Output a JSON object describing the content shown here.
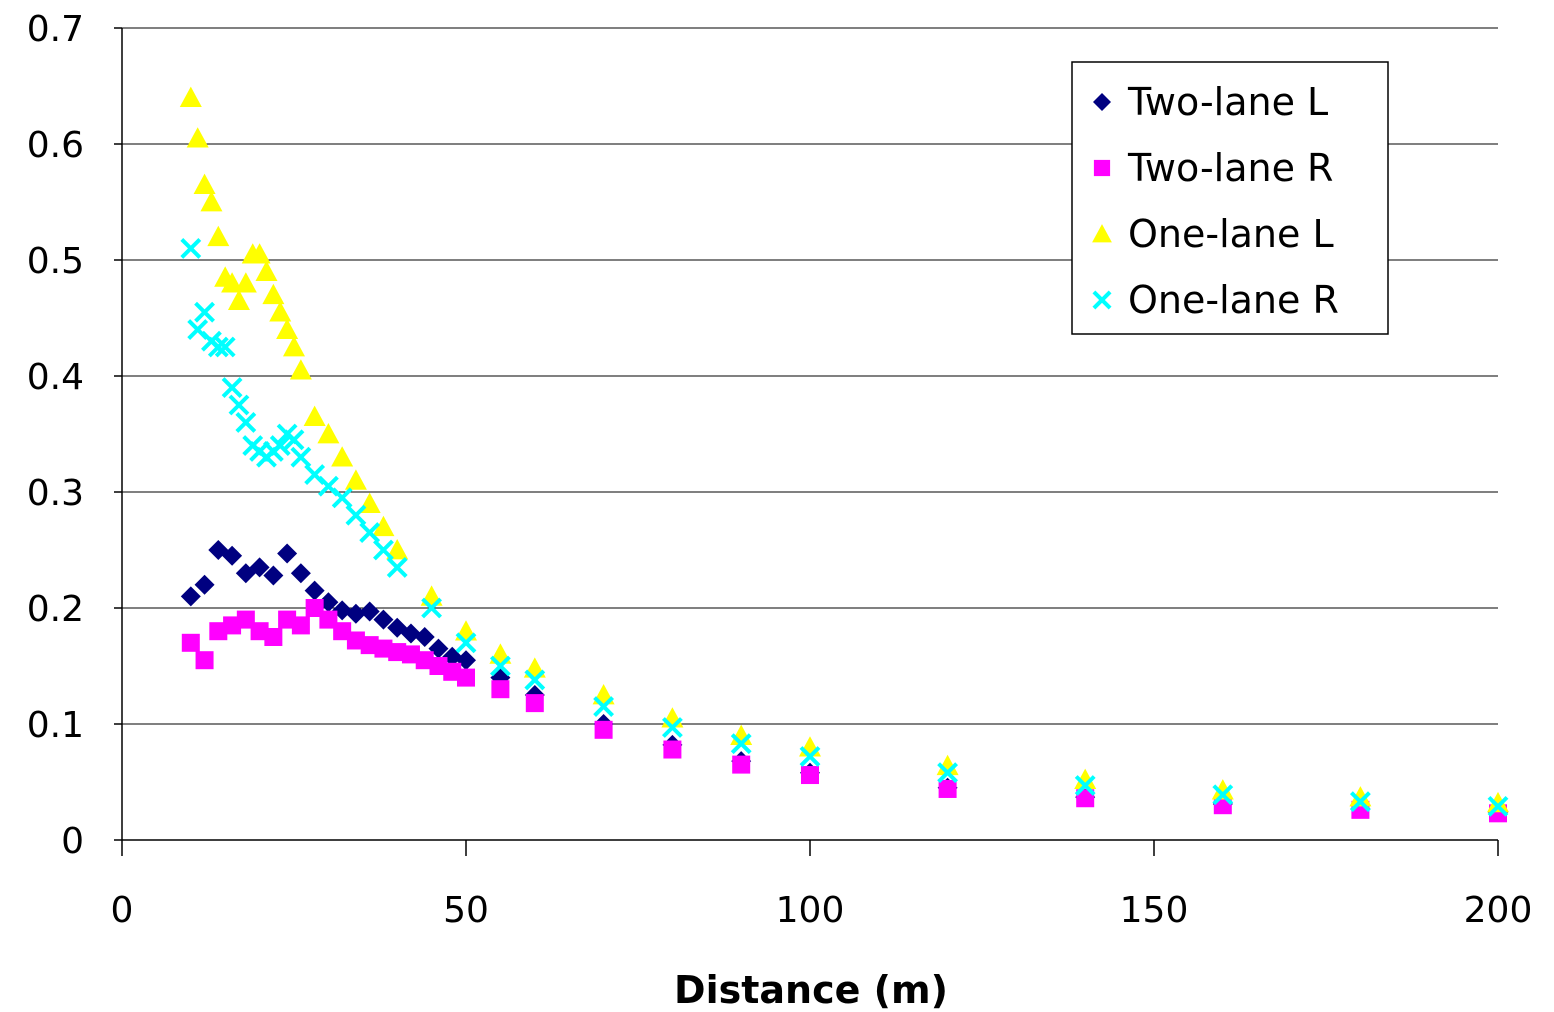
{
  "chart_data": {
    "type": "scatter",
    "title": "",
    "xlabel": "Distance (m)",
    "ylabel": "",
    "xlim": [
      0,
      200
    ],
    "ylim": [
      0,
      0.7
    ],
    "xticks": [
      "0",
      "50",
      "100",
      "150",
      "200"
    ],
    "yticks": [
      "0",
      "0.1",
      "0.2",
      "0.3",
      "0.4",
      "0.5",
      "0.6",
      "0.7"
    ],
    "grid": "horizontal",
    "legend_position": "top-right",
    "series": [
      {
        "name": "Two-lane L",
        "marker": "diamond",
        "color": "#000080",
        "x": [
          10,
          12,
          14,
          16,
          18,
          20,
          22,
          24,
          26,
          28,
          30,
          32,
          34,
          36,
          38,
          40,
          42,
          44,
          46,
          48,
          50,
          55,
          60,
          70,
          80,
          90,
          100,
          120,
          140,
          160,
          180,
          200
        ],
        "y": [
          0.21,
          0.22,
          0.25,
          0.245,
          0.23,
          0.235,
          0.228,
          0.247,
          0.23,
          0.215,
          0.205,
          0.198,
          0.195,
          0.197,
          0.19,
          0.183,
          0.178,
          0.175,
          0.165,
          0.158,
          0.155,
          0.14,
          0.125,
          0.1,
          0.082,
          0.068,
          0.058,
          0.045,
          0.037,
          0.031,
          0.027,
          0.024
        ]
      },
      {
        "name": "Two-lane R",
        "marker": "square",
        "color": "#FF00FF",
        "x": [
          10,
          12,
          14,
          16,
          18,
          20,
          22,
          24,
          26,
          28,
          30,
          32,
          34,
          36,
          38,
          40,
          42,
          44,
          46,
          48,
          50,
          55,
          60,
          70,
          80,
          90,
          100,
          120,
          140,
          160,
          180,
          200
        ],
        "y": [
          0.17,
          0.155,
          0.18,
          0.185,
          0.19,
          0.18,
          0.175,
          0.19,
          0.185,
          0.2,
          0.19,
          0.18,
          0.172,
          0.168,
          0.165,
          0.162,
          0.16,
          0.155,
          0.15,
          0.145,
          0.14,
          0.13,
          0.118,
          0.095,
          0.078,
          0.065,
          0.056,
          0.044,
          0.036,
          0.03,
          0.026,
          0.023
        ]
      },
      {
        "name": "One-lane L",
        "marker": "triangle",
        "color": "#FFFF00",
        "x": [
          10,
          11,
          12,
          13,
          14,
          15,
          16,
          17,
          18,
          19,
          20,
          21,
          22,
          23,
          24,
          25,
          26,
          28,
          30,
          32,
          34,
          36,
          38,
          40,
          45,
          50,
          55,
          60,
          70,
          80,
          90,
          100,
          120,
          140,
          160,
          180,
          200
        ],
        "y": [
          0.64,
          0.605,
          0.565,
          0.55,
          0.52,
          0.485,
          0.48,
          0.465,
          0.48,
          0.505,
          0.505,
          0.49,
          0.47,
          0.455,
          0.44,
          0.425,
          0.405,
          0.365,
          0.35,
          0.33,
          0.31,
          0.29,
          0.27,
          0.25,
          0.21,
          0.18,
          0.16,
          0.148,
          0.125,
          0.105,
          0.09,
          0.08,
          0.064,
          0.052,
          0.043,
          0.037,
          0.032
        ]
      },
      {
        "name": "One-lane R",
        "marker": "cross",
        "color": "#00FFFF",
        "x": [
          10,
          11,
          12,
          13,
          14,
          15,
          16,
          17,
          18,
          19,
          20,
          21,
          22,
          23,
          24,
          25,
          26,
          28,
          30,
          32,
          34,
          36,
          38,
          40,
          45,
          50,
          55,
          60,
          70,
          80,
          90,
          100,
          120,
          140,
          160,
          180,
          200
        ],
        "y": [
          0.51,
          0.44,
          0.455,
          0.43,
          0.425,
          0.425,
          0.39,
          0.375,
          0.36,
          0.34,
          0.335,
          0.33,
          0.335,
          0.34,
          0.35,
          0.345,
          0.33,
          0.315,
          0.305,
          0.295,
          0.28,
          0.265,
          0.25,
          0.235,
          0.2,
          0.17,
          0.15,
          0.138,
          0.115,
          0.097,
          0.083,
          0.072,
          0.058,
          0.047,
          0.039,
          0.033,
          0.029
        ]
      }
    ]
  }
}
